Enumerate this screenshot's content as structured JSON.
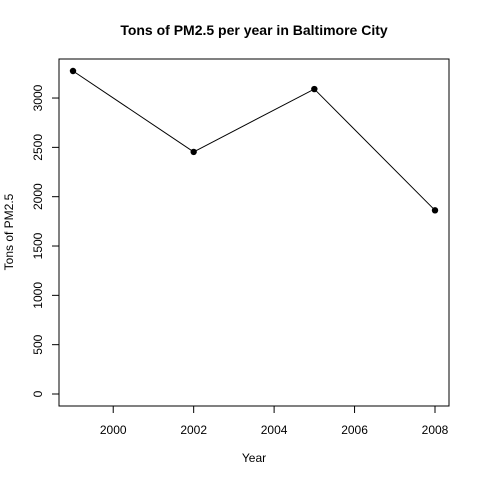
{
  "chart_data": {
    "type": "line",
    "title": "Tons of PM2.5 per year in Baltimore City",
    "xlabel": "Year",
    "ylabel": "Tons of PM2.5",
    "x": [
      1999,
      2002,
      2005,
      2008
    ],
    "series": [
      {
        "values": [
          3274,
          2454,
          3091,
          1862
        ]
      }
    ],
    "xlim": [
      1999,
      2008
    ],
    "ylim": [
      0,
      3274
    ],
    "x_ticks": [
      "2000",
      "2002",
      "2004",
      "2006",
      "2008"
    ],
    "y_ticks": [
      "0",
      "500",
      "1000",
      "1500",
      "2000",
      "2500",
      "3000"
    ],
    "grid": false,
    "line_color": "#000000",
    "marker": "filled-circle"
  }
}
